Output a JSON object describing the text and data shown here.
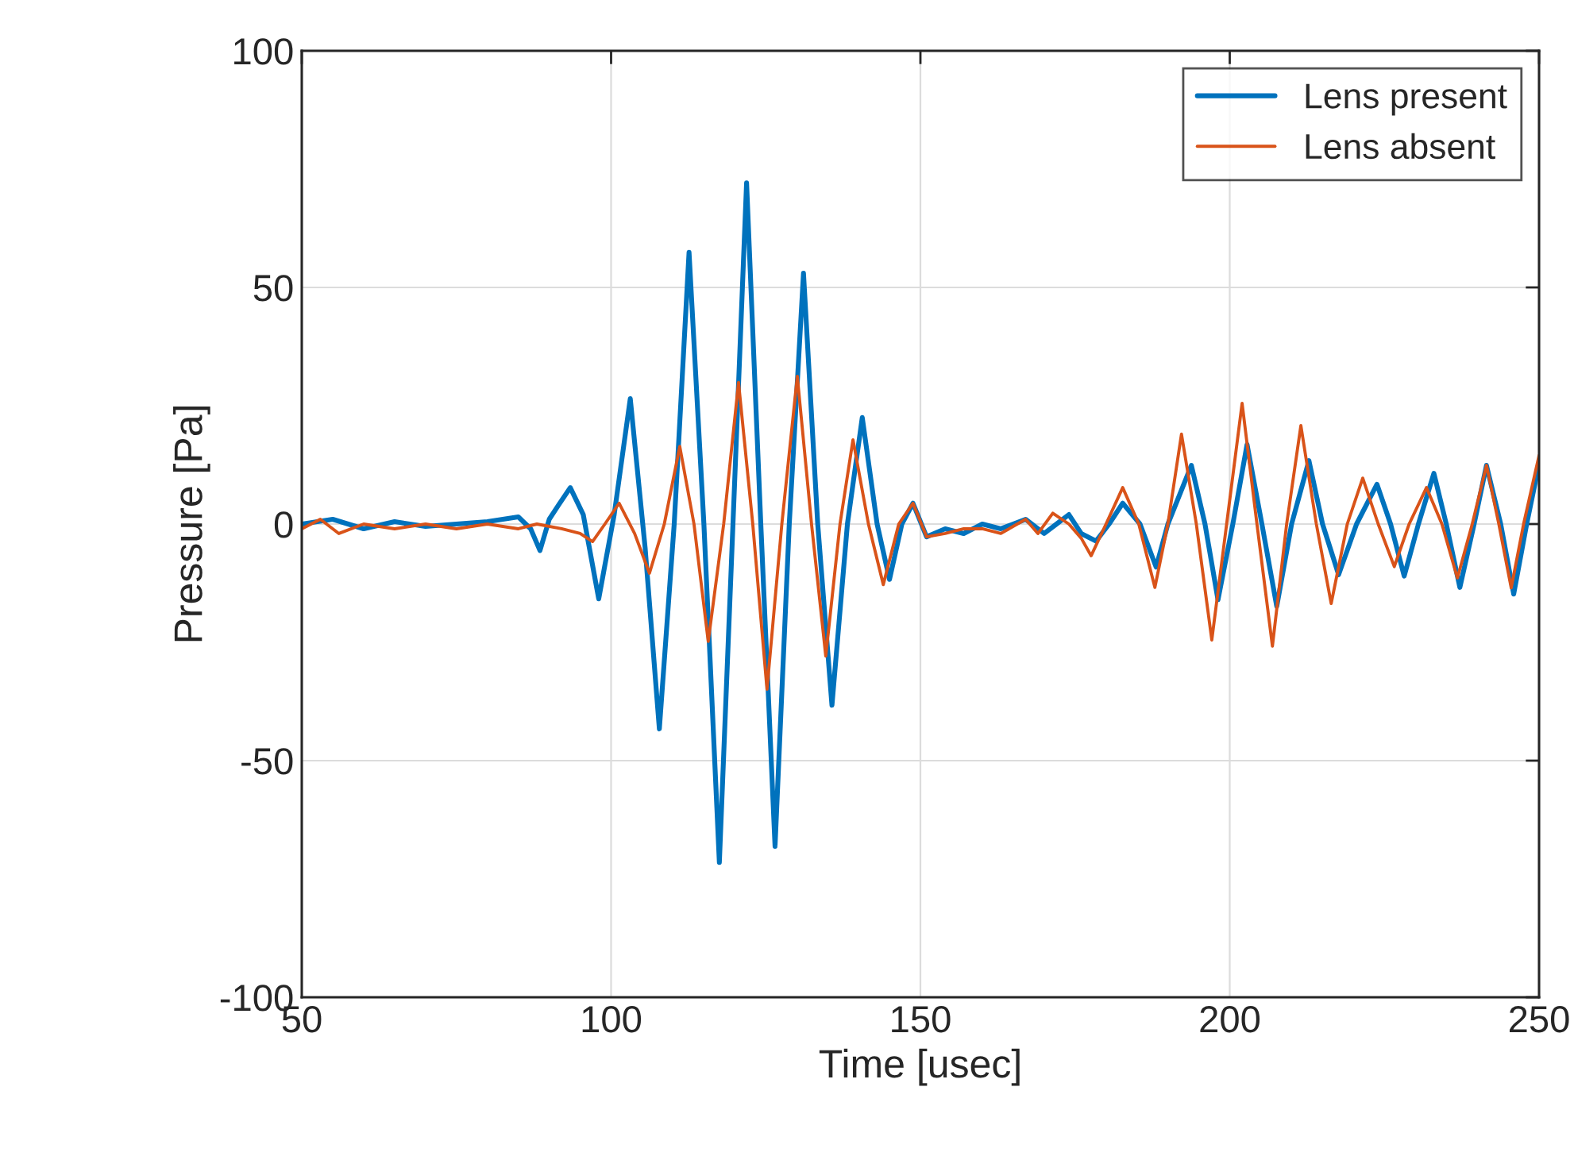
{
  "chart_data": {
    "type": "line",
    "xlabel": "Time [usec]",
    "ylabel": "Pressure [Pa]",
    "xlim": [
      50,
      250
    ],
    "xticks": [
      50,
      100,
      150,
      200,
      250
    ],
    "ylim": [
      -100,
      100
    ],
    "yticks": [
      -100,
      -50,
      0,
      50,
      100
    ],
    "grid": true,
    "legend": "top right",
    "line_style": "solid",
    "marker": "none",
    "series": [
      {
        "name": "Lens present",
        "color": "#0072bd",
        "x": [
          50,
          55,
          60,
          65,
          70,
          75,
          80,
          85,
          87,
          88.5,
          90,
          91.5,
          93.4,
          95.5,
          98,
          100.5,
          103.1,
          105.5,
          107.8,
          110.2,
          112.6,
          115,
          117.5,
          119.7,
          121.9,
          124.2,
          126.5,
          128.8,
          131.1,
          133.4,
          135.7,
          138.2,
          140.6,
          143,
          145,
          147,
          148.8,
          151,
          154,
          157,
          160,
          163,
          167,
          170,
          172,
          174,
          176,
          178.4,
          180.5,
          182.7,
          185.5,
          188.1,
          190,
          193.8,
          196,
          198.1,
          200.5,
          202.8,
          205.2,
          207.6,
          210,
          212.8,
          215,
          217.6,
          220.5,
          223.8,
          226,
          228.2,
          230.5,
          233,
          235,
          237.2,
          239.5,
          241.5,
          243.8,
          245.9,
          248,
          250
        ],
        "values": [
          0,
          1,
          -1,
          0.5,
          -0.5,
          0,
          0.5,
          1.5,
          -1,
          -5.6,
          1,
          4,
          7.7,
          2,
          -15.8,
          2,
          26.5,
          -5,
          -43.3,
          0,
          57.4,
          0,
          -71.5,
          0,
          72.1,
          0,
          -68.1,
          0,
          53,
          0,
          -38.3,
          0,
          22.5,
          0,
          -11.7,
          0,
          4.4,
          -2.7,
          -1,
          -2,
          0,
          -1,
          1,
          -2,
          0,
          2,
          -2,
          -3.6,
          0,
          4.4,
          0,
          -9.1,
          0,
          12.4,
          0,
          -16,
          0,
          16.8,
          0,
          -17.4,
          0,
          13.4,
          0,
          -10.7,
          0,
          8.4,
          0,
          -11,
          0,
          10.7,
          0,
          -13.4,
          0,
          12.4,
          0,
          -14.8,
          0,
          12.7
        ]
      },
      {
        "name": "Lens absent",
        "color": "#d95319",
        "x": [
          50,
          53,
          56,
          60,
          65,
          70,
          75,
          80,
          85,
          88,
          92,
          95,
          97,
          99,
          101.3,
          103.8,
          106.2,
          108.6,
          111.1,
          113.4,
          115.7,
          118.2,
          120.6,
          122.9,
          125.2,
          127.6,
          130.1,
          132.4,
          134.7,
          137,
          139.1,
          141.6,
          144,
          146.5,
          148.8,
          151,
          154,
          157,
          160,
          163,
          167,
          169,
          171.4,
          174,
          176,
          177.6,
          180,
          182.7,
          185.3,
          187.9,
          190,
          192.2,
          194.6,
          197.1,
          199.5,
          202,
          204.4,
          206.9,
          209.2,
          211.5,
          214,
          216.4,
          219,
          221.5,
          224,
          226.6,
          229,
          231.8,
          234.3,
          236.8,
          239.2,
          241.5,
          243.5,
          245.5,
          247.5,
          250
        ],
        "values": [
          -1,
          1,
          -2,
          0,
          -1,
          0,
          -1,
          0,
          -1,
          0,
          -1,
          -2,
          -3.7,
          0,
          4.4,
          -2,
          -10.4,
          0,
          16.4,
          0,
          -24.8,
          0,
          29.9,
          0,
          -34.9,
          0,
          31.2,
          0,
          -27.9,
          0,
          17.8,
          0,
          -12.8,
          0,
          4.4,
          -2.7,
          -2,
          -1,
          -1,
          -2,
          1,
          -2,
          2.3,
          0,
          -3,
          -6.7,
          0,
          7.7,
          0,
          -13.4,
          0,
          19,
          0,
          -24.5,
          0,
          25.5,
          0,
          -25.8,
          0,
          20.8,
          0,
          -16.8,
          0,
          9.7,
          0,
          -9,
          0,
          7.7,
          0,
          -11.4,
          0,
          12.4,
          0,
          -13.5,
          0,
          14.5
        ]
      }
    ]
  }
}
